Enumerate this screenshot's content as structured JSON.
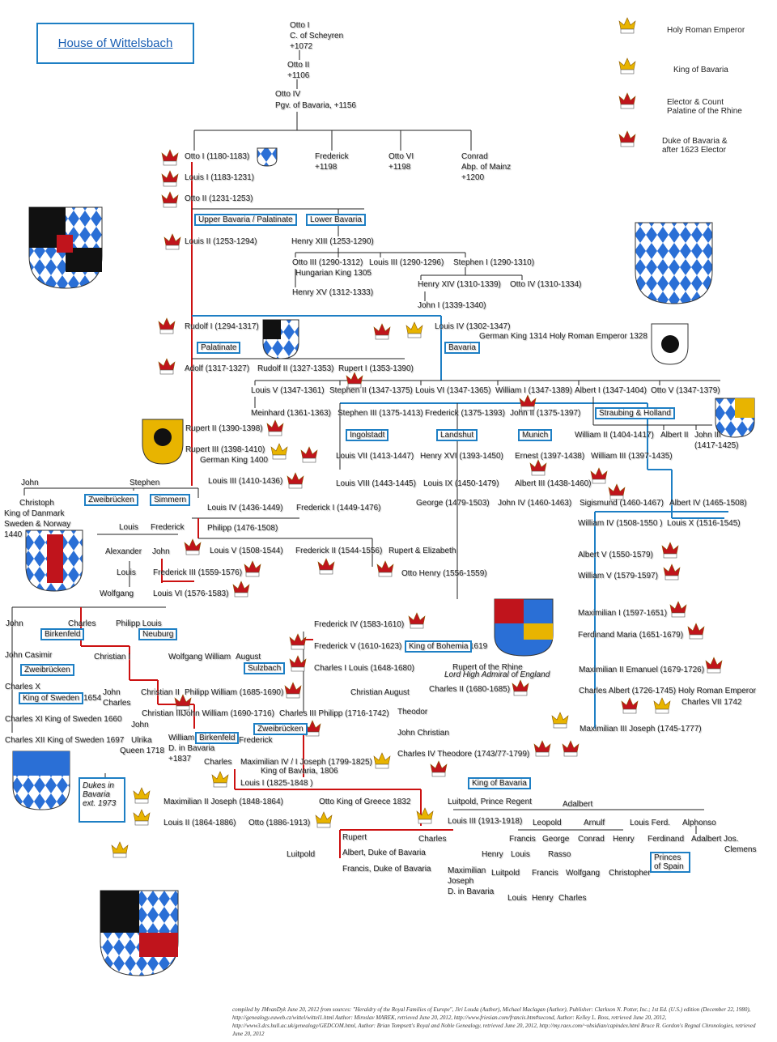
{
  "title": "House of Wittelsbach",
  "colors": {
    "line_black": "#222222",
    "line_red": "#cc1111",
    "line_blue": "#1e7fc4",
    "crown_red": "#c0141c",
    "crown_gold": "#e8b400",
    "bavaria_blue": "#2a6fd6"
  },
  "legend": [
    {
      "icon": "crown-gold-red-icon",
      "label": "Holy Roman Emperor"
    },
    {
      "icon": "crown-gold-icon",
      "label": "King of Bavaria"
    },
    {
      "icon": "crown-red-ermine-icon",
      "label": "Elector & Count Palatine of the Rhine"
    },
    {
      "icon": "crown-red-icon",
      "label": "Duke of Bavaria & after 1623 Elector"
    }
  ],
  "labels": [
    "Otto I",
    "C. of Scheyren",
    "+1072",
    "Otto II",
    "+1106",
    "Otto IV",
    "Pgv. of Bavaria, +1156",
    "Otto I (1180-1183)",
    "Frederick",
    "+1198",
    "Otto VI",
    "+1198",
    "Conrad",
    "Abp. of Mainz",
    "+1200",
    "Louis I (1183-1231)",
    "Otto II (1231-1253)",
    "Louis II (1253-1294)",
    "Henry XIII (1253-1290)",
    "Otto III (1290-1312)",
    "Hungarian King 1305",
    "Louis III (1290-1296)",
    "Stephen I (1290-1310)",
    "Henry XV (1312-1333)",
    "Henry XIV (1310-1339)",
    "Otto IV (1310-1334)",
    "John I (1339-1340)",
    "Rudolf I (1294-1317)",
    "Louis IV (1302-1347)",
    "German King 1314 Holy Roman Emperor 1328",
    "Adolf (1317-1327)",
    "Rudolf II (1327-1353)",
    "Rupert I (1353-1390)",
    "Louis V (1347-1361)",
    "Stephen II (1347-1375)",
    "Louis VI (1347-1365)",
    "William I (1347-1389)",
    "Albert I (1347-1404)",
    "Otto V (1347-1379)",
    "Meinhard (1361-1363)",
    "Stephen III (1375-1413)",
    "Frederick (1375-1393)",
    "John II (1375-1397)",
    "Rupert II (1390-1398)",
    "William II (1404-1417)",
    "Albert II",
    "John III",
    "(1417-1425)",
    "Rupert III (1398-1410)",
    "German King 1400",
    "Louis VII (1413-1447)",
    "Henry XVI (1393-1450)",
    "Ernest (1397-1438)",
    "William III (1397-1435)",
    "John",
    "Stephen",
    "Louis III (1410-1436)",
    "Louis VIII (1443-1445)",
    "Louis IX  (1450-1479)",
    "Albert III (1438-1460)",
    "Christoph",
    "King of Danmark",
    "Sweden & Norway",
    "1440",
    "Louis IV (1436-1449)",
    "Frederick I (1449-1476)",
    "George (1479-1503)",
    "John IV (1460-1463)",
    "Sigismund (1460-1467)",
    "Albert IV (1465-1508)",
    "William IV (1508-1550 )",
    "Louis X (1516-1545)",
    "Louis",
    "Frederick",
    "Philipp (1476-1508)",
    "Alexander",
    "John",
    "Louis V (1508-1544)",
    "Frederick II (1544-1556)",
    "Rupert & Elizabeth",
    "Albert V (1550-1579)",
    "Louis",
    "Frederick III (1559-1576)",
    "Otto Henry (1556-1559)",
    "William V (1579-1597)",
    "Wolfgang",
    "Louis VI (1576-1583)",
    "Maximilian I (1597-1651)",
    "John",
    "Charles",
    "Philipp Louis",
    "Frederick IV (1583-1610)",
    "Ferdinand Maria (1651-1679)",
    "Frederick V (1610-1623)",
    "1619",
    "John Casimir",
    "Christian I",
    "Wolfgang William",
    "August",
    "Rupert of the Rhine",
    "Charles I Louis (1648-1680)",
    "Maximilian II Emanuel (1679-1726)",
    "Charles X",
    "1654",
    "John",
    "Charles",
    "Christian II",
    "Philipp William (1685-1690)",
    "Christian August",
    "Charles II (1680-1685)",
    "Charles Albert (1726-1745) Holy Roman Emperor",
    "Charles VII  1742",
    "Christian III",
    "John William (1690-1716)",
    "Charles III Philipp (1716-1742)",
    "Theodor",
    "Charles XI  King of Sweden 1660",
    "John",
    "Maximilian III Joseph (1745-1777)",
    "John Christian",
    "Charles XII King of Sweden 1697",
    "Ulrika",
    "Queen 1718",
    "William",
    "Frederick",
    "D. in Bavaria",
    "+1837",
    "Charles IV Theodore (1743/77-1799)",
    "Charles",
    "Maximilian IV / I Joseph (1799-1825)",
    "King of Bavaria, 1806",
    "Louis I (1825-1848 )",
    "Maximilian II Joseph (1848-1864)",
    "Otto  King of Greece 1832",
    "Luitpold, Prince Regent",
    "Adalbert",
    "Louis II (1864-1886)",
    "Otto (1886-1913)",
    "Louis III (1913-1918)",
    "Leopold",
    "Arnulf",
    "Louis Ferd.",
    "Alphonso",
    "Rupert",
    "Charles",
    "Francis",
    "George",
    "Conrad",
    "Henry",
    "Ferdinand",
    "Adalbert Jos.",
    "Clemens",
    "Luitpold",
    "Albert, Duke of Bavaria",
    "Henry",
    "Louis",
    "Rasso",
    "Francis, Duke of Bavaria",
    "Maximilian",
    "Joseph",
    "D. in Bavaria",
    "Luitpold",
    "Francis",
    "Wolfgang",
    "Christopher",
    "Louis",
    "Henry",
    "Charles"
  ],
  "italic_labels": [
    "Lord High Admiral of England"
  ],
  "boxes": [
    "Upper Bavaria / Palatinate",
    "Lower Bavaria",
    "Palatinate",
    "Bavaria",
    "Straubing & Holland",
    "Ingolstadt",
    "Landshut",
    "Munich",
    "Zweibrücken",
    "Simmern",
    "Birkenfeld",
    "Neuburg",
    "King of Bohemia",
    "Zweibrücken",
    "Sulzbach",
    "King of Sweden",
    "Zweibrücken",
    "Birkenfeld",
    "King of Bavaria",
    "Princes of Spain"
  ],
  "dukes_box": "Dukes in Bavaria ext. 1973",
  "footer": "compiled by JMvanDyk June 20, 2012 from sources: \"Heraldry of the Royal Families of Europe\", Jiri Louda (Author), Michael Maclagan (Author), Publisher: Clarkson N. Potter, Inc.; 1st Ed. (U.S.) edition (December 22, 1980), http://genealogy.euweb.cz/wittel/wittel1.html Author: Miroslav MAREK, retrieved June 20, 2012, http://www.friesian.com/francis.htm#second, Author: Kelley L. Ross, retrieved June 20, 2012, http://www3.dcs.hull.ac.uk/genealogy/GEDCOM.html, Author: Brian Tompsett's Royal and Noble Genealogy, retrieved June 20, 2012, http://my.raex.com/~obsidian/capindex.html Bruce R. Gordon's Regnal Chronologies, retrieved June 20, 2012"
}
